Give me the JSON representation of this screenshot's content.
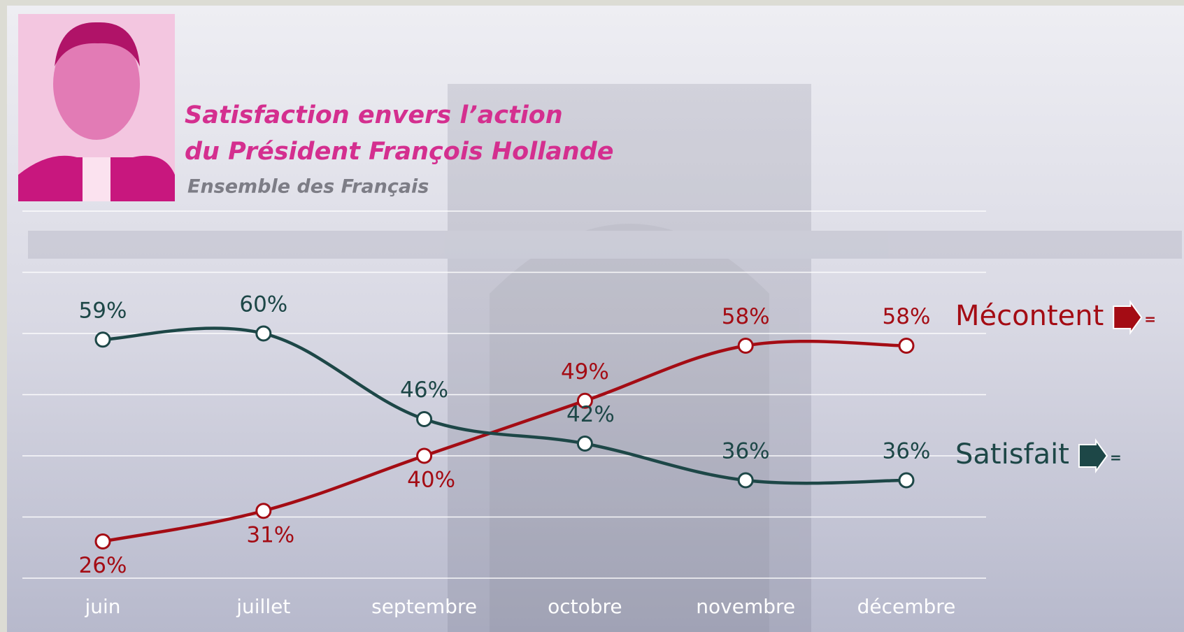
{
  "chart_data": {
    "type": "line",
    "title": [
      "Satisfaction envers l’action",
      "du Président François Hollande"
    ],
    "subtitle": "Ensemble des Français",
    "categories": [
      "juin",
      "juillet",
      "septembre",
      "octobre",
      "novembre",
      "décembre"
    ],
    "series": [
      {
        "name": "Mécontent",
        "color": "#a40c14",
        "trend": "=",
        "values": [
          26,
          31,
          40,
          49,
          58,
          58
        ],
        "value_labels": [
          "26%",
          "31%",
          "40%",
          "49%",
          "58%",
          "58%"
        ]
      },
      {
        "name": "Satisfait",
        "color": "#1d4747",
        "trend": "=",
        "values": [
          59,
          60,
          46,
          42,
          36,
          36
        ],
        "value_labels": [
          "59%",
          "60%",
          "46%",
          "42%",
          "36%",
          "36%"
        ]
      }
    ],
    "ylim": [
      20,
      80
    ],
    "yticks": [
      20,
      30,
      40,
      50,
      60,
      70,
      80
    ],
    "grid": true
  }
}
